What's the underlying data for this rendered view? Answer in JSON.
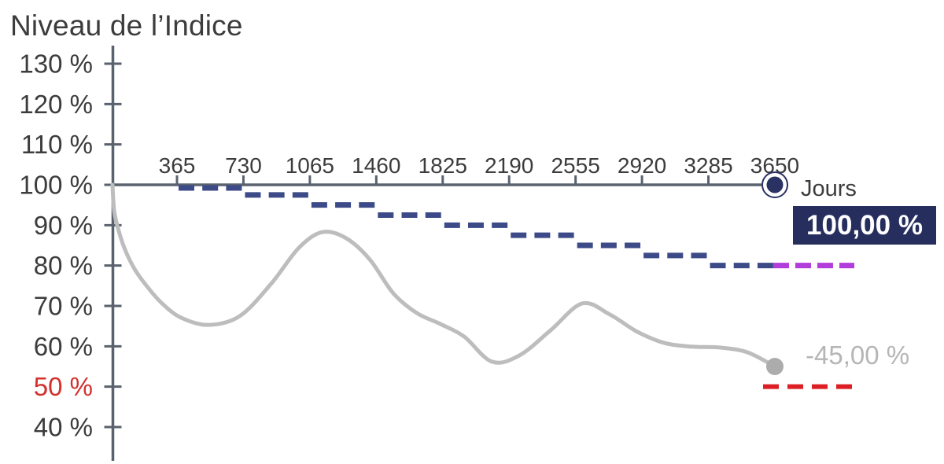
{
  "labels": {
    "title": "Niveau de l’Indice",
    "x_axis_unit": "Jours",
    "capital_badge_value": "100,00 %",
    "index_end_value": "-45,00 %"
  },
  "colors": {
    "axis": "#59626e",
    "label_text": "#3c3c3c",
    "highlight_red": "#d3302c",
    "step_dash": "#3c4a88",
    "step_extension": "#b13ddb",
    "barrier_dash": "#dc1e25",
    "index_curve": "#bdbdbd",
    "index_dot": "#acacac",
    "index_label": "#b5b5b5",
    "handle": "#2a3264",
    "badge_bg": "#262e5d",
    "badge_text": "#ffffff"
  },
  "chart_data": {
    "type": "line",
    "title": "Niveau de l’Indice",
    "xlabel": "Jours",
    "ylabel": "Niveau de l’Indice (%)",
    "grid": false,
    "legend": false,
    "ylim": [
      40,
      130
    ],
    "x_max_days": 3650,
    "x_ticks": [
      365,
      730,
      1065,
      1460,
      1825,
      2190,
      2555,
      2920,
      3285,
      3650
    ],
    "y_ticks": [
      {
        "label": "130 %",
        "value": 130,
        "highlight": false
      },
      {
        "label": "120 %",
        "value": 120,
        "highlight": false
      },
      {
        "label": "110 %",
        "value": 110,
        "highlight": false
      },
      {
        "label": "100 %",
        "value": 100,
        "highlight": false
      },
      {
        "label": "90 %",
        "value": 90,
        "highlight": false
      },
      {
        "label": "80 %",
        "value": 80,
        "highlight": false
      },
      {
        "label": "70 %",
        "value": 70,
        "highlight": false
      },
      {
        "label": "60 %",
        "value": 60,
        "highlight": false
      },
      {
        "label": "50 %",
        "value": 50,
        "highlight": true
      },
      {
        "label": "40 %",
        "value": 40,
        "highlight": false
      }
    ],
    "series": [
      {
        "name": "coupon-barrier-steps",
        "type": "step-dashed",
        "color": "#3c4a88",
        "steps": [
          {
            "from": 365,
            "to": 730,
            "level": 100
          },
          {
            "from": 730,
            "to": 1065,
            "level": 97.5
          },
          {
            "from": 1065,
            "to": 1460,
            "level": 95
          },
          {
            "from": 1460,
            "to": 1825,
            "level": 92.5
          },
          {
            "from": 1825,
            "to": 2190,
            "level": 90
          },
          {
            "from": 2190,
            "to": 2555,
            "level": 87.5
          },
          {
            "from": 2555,
            "to": 2920,
            "level": 85
          },
          {
            "from": 2920,
            "to": 3285,
            "level": 82.5
          },
          {
            "from": 3285,
            "to": 3650,
            "level": 80
          }
        ]
      },
      {
        "name": "post-maturity-extension",
        "type": "dashed-line",
        "color": "#b13ddb",
        "level": 80,
        "from_day": 3650
      },
      {
        "name": "protection-barrier",
        "type": "dashed-line",
        "color": "#dc1e25",
        "level": 50,
        "near_day": 3650
      },
      {
        "name": "index-path",
        "type": "smooth-line",
        "color": "#bdbdbd",
        "end_value_pct": 55,
        "end_label": "-45,00 %",
        "points": [
          [
            0,
            100
          ],
          [
            9,
            93.6
          ],
          [
            30,
            89.3
          ],
          [
            65,
            84.4
          ],
          [
            117,
            79.5
          ],
          [
            182,
            75.3
          ],
          [
            269,
            70.8
          ],
          [
            377,
            67.1
          ],
          [
            529,
            65.3
          ],
          [
            702,
            67.5
          ],
          [
            876,
            75.6
          ],
          [
            1027,
            84.4
          ],
          [
            1157,
            88.3
          ],
          [
            1287,
            86.8
          ],
          [
            1418,
            81.5
          ],
          [
            1548,
            73.1
          ],
          [
            1678,
            68.2
          ],
          [
            1808,
            65.5
          ],
          [
            1938,
            62.4
          ],
          [
            2090,
            56.2
          ],
          [
            2241,
            57.7
          ],
          [
            2415,
            64
          ],
          [
            2588,
            70.6
          ],
          [
            2740,
            67.9
          ],
          [
            2892,
            63.6
          ],
          [
            3043,
            60.8
          ],
          [
            3195,
            59.9
          ],
          [
            3347,
            59.7
          ],
          [
            3499,
            58.5
          ],
          [
            3650,
            55
          ]
        ]
      }
    ],
    "annotations": [
      {
        "name": "axis-end-value",
        "text": "100,00 %"
      },
      {
        "name": "index-end-value",
        "text": "-45,00 %"
      },
      {
        "name": "x-axis-unit",
        "text": "Jours"
      }
    ]
  }
}
